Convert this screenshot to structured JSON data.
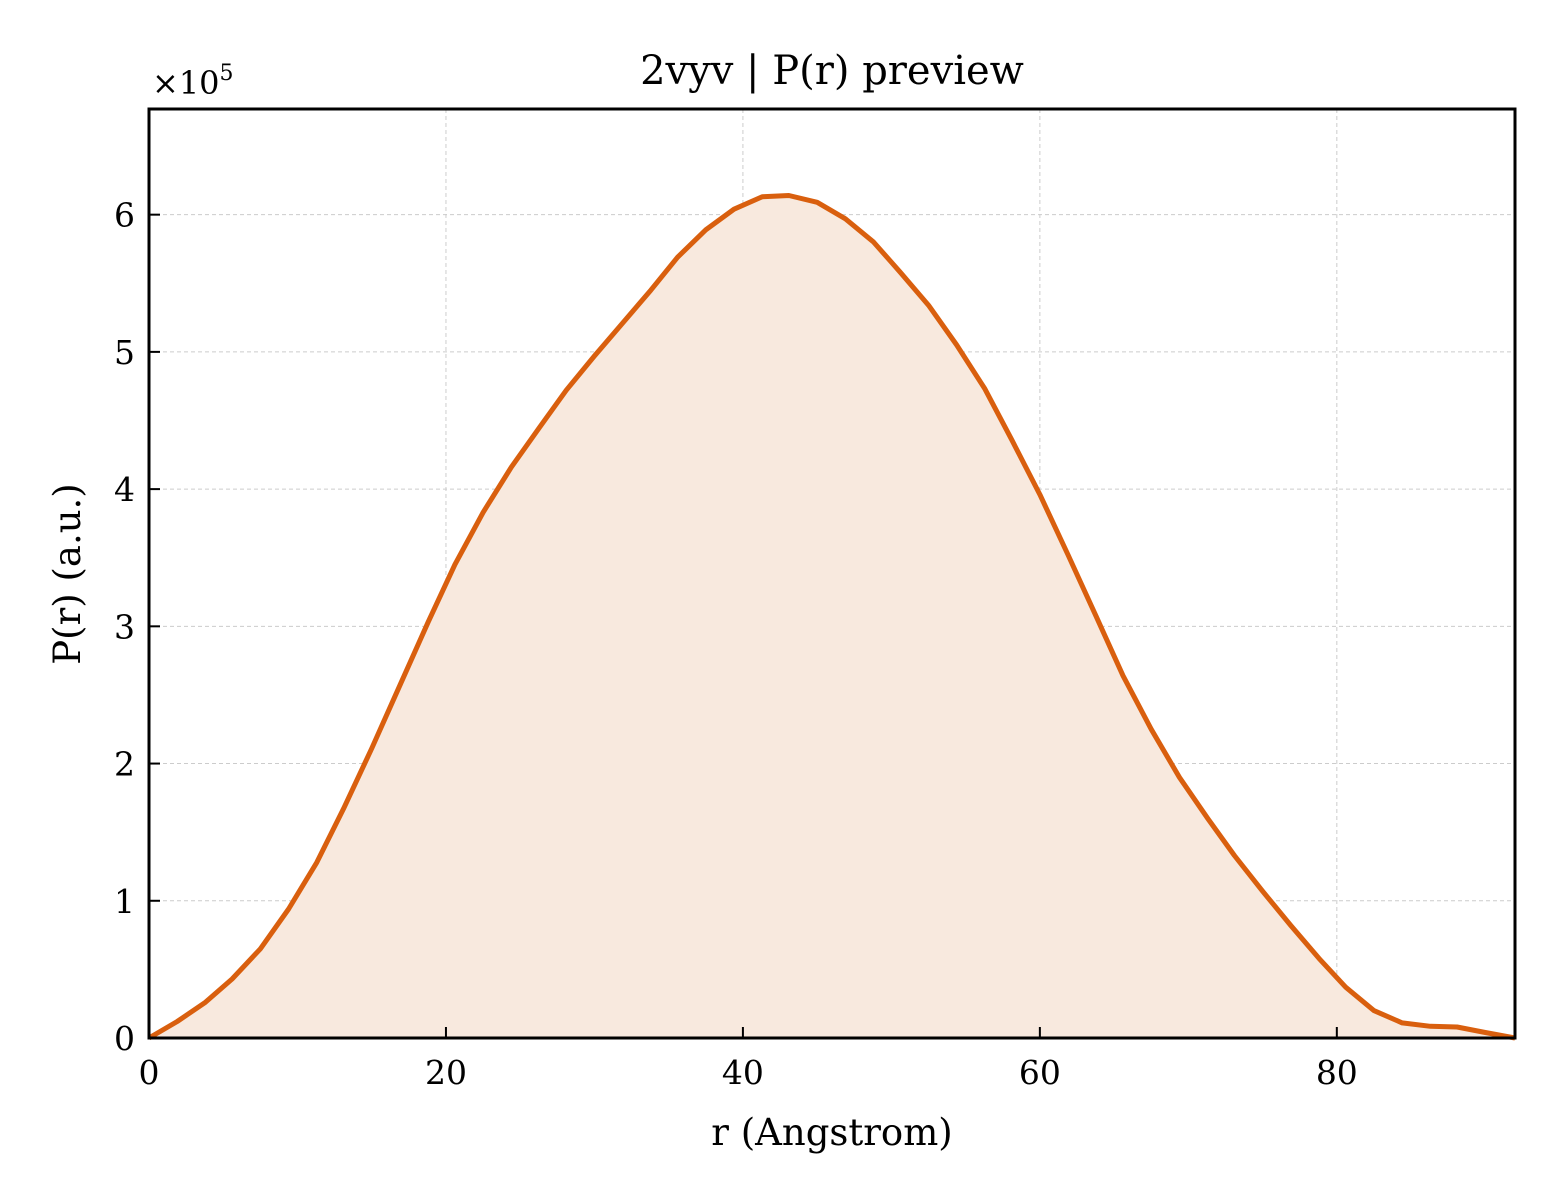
{
  "chart_data": {
    "type": "area",
    "title": "2vyv | P(r) preview",
    "xlabel": "r (Angstrom)",
    "ylabel": "P(r) (a.u.)",
    "y_offset_text": "×10",
    "y_offset_exponent": "5",
    "y_scale": 100000,
    "xlim": [
      0,
      92
    ],
    "ylim": [
      0,
      6.77
    ],
    "x_ticks": [
      0,
      20,
      40,
      60,
      80
    ],
    "y_ticks": [
      0,
      1,
      2,
      3,
      4,
      5,
      6
    ],
    "grid": true,
    "legend": "none",
    "colors": {
      "line": "#d95f0e",
      "fill": "#f8e9de"
    },
    "series": [
      {
        "x": [
          0,
          1.9,
          3.8,
          5.6,
          7.5,
          9.4,
          11.3,
          13.1,
          15.0,
          16.9,
          18.8,
          20.6,
          22.5,
          24.4,
          26.3,
          28.1,
          30.0,
          31.9,
          33.8,
          35.6,
          37.5,
          39.4,
          41.3,
          43.1,
          45.0,
          46.9,
          48.8,
          50.6,
          52.5,
          54.4,
          56.3,
          58.1,
          60.0,
          61.9,
          63.8,
          65.6,
          67.5,
          69.4,
          71.3,
          73.1,
          75.0,
          76.9,
          78.8,
          80.6,
          82.5,
          84.4,
          86.3,
          88.1,
          90.0,
          92.0
        ],
        "y": [
          0.0,
          0.12,
          0.26,
          0.43,
          0.65,
          0.94,
          1.28,
          1.67,
          2.11,
          2.57,
          3.03,
          3.45,
          3.83,
          4.16,
          4.45,
          4.72,
          4.97,
          5.21,
          5.45,
          5.69,
          5.89,
          6.04,
          6.13,
          6.14,
          6.09,
          5.97,
          5.8,
          5.58,
          5.34,
          5.05,
          4.73,
          4.36,
          3.96,
          3.52,
          3.07,
          2.64,
          2.25,
          1.9,
          1.6,
          1.33,
          1.07,
          0.82,
          0.58,
          0.37,
          0.2,
          0.11,
          0.085,
          0.08,
          0.04,
          0.0
        ]
      }
    ]
  }
}
